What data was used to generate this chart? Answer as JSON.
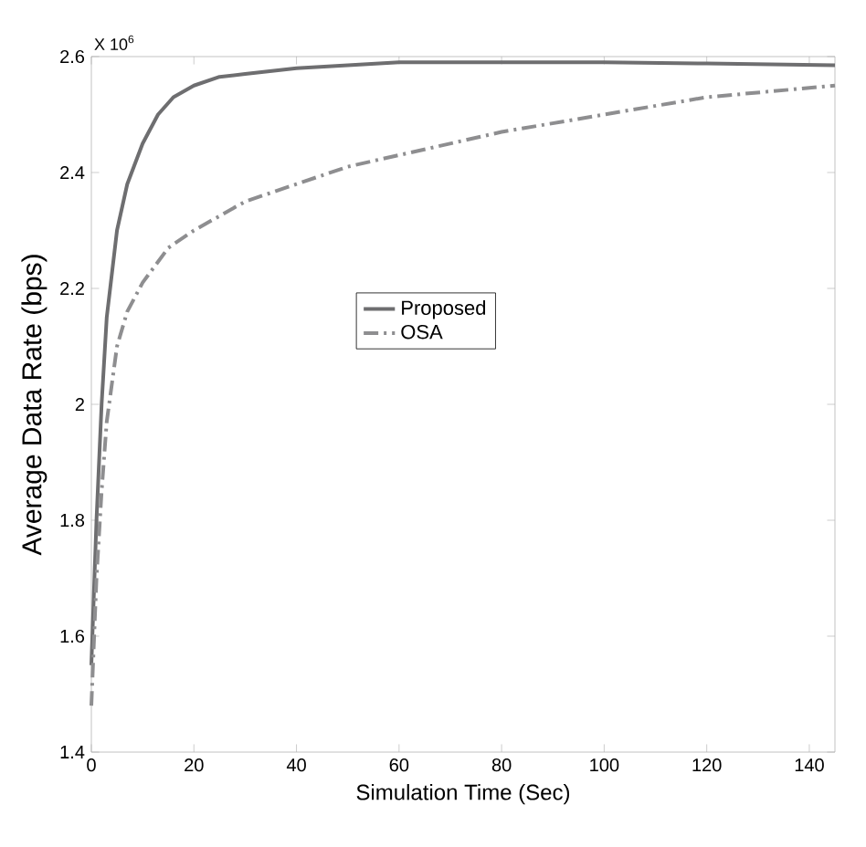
{
  "chart_data": {
    "type": "line",
    "xlabel": "Simulation Time (Sec)",
    "ylabel": "Average Data Rate (bps)",
    "annotations": [
      "X 10$^{6}$"
    ],
    "xlim": [
      0,
      145
    ],
    "xticks": [
      0,
      20,
      40,
      60,
      80,
      100,
      120,
      140
    ],
    "ylim": [
      1.4,
      2.6
    ],
    "yticks": [
      1.4,
      1.6,
      1.8,
      2,
      2.2,
      2.4,
      2.6
    ],
    "legend": "center",
    "marker": "none",
    "series": [
      {
        "name": "Proposed",
        "color": "#6e6e70",
        "line_style": "solid",
        "x": [
          0,
          1,
          2,
          3,
          5,
          7,
          10,
          13,
          16,
          20,
          25,
          30,
          40,
          50,
          60,
          80,
          100,
          120,
          145
        ],
        "values": [
          1.55,
          1.8,
          2.0,
          2.15,
          2.3,
          2.38,
          2.45,
          2.5,
          2.53,
          2.55,
          2.565,
          2.57,
          2.58,
          2.585,
          2.59,
          2.59,
          2.59,
          2.588,
          2.585
        ]
      },
      {
        "name": "OSA",
        "color": "#8e8e90",
        "line_style": "dashed",
        "x": [
          0,
          1,
          2,
          3,
          5,
          7,
          10,
          15,
          20,
          30,
          40,
          50,
          60,
          80,
          100,
          120,
          145
        ],
        "values": [
          1.48,
          1.7,
          1.85,
          1.97,
          2.1,
          2.16,
          2.21,
          2.27,
          2.3,
          2.35,
          2.38,
          2.41,
          2.43,
          2.47,
          2.5,
          2.53,
          2.55
        ]
      }
    ]
  }
}
